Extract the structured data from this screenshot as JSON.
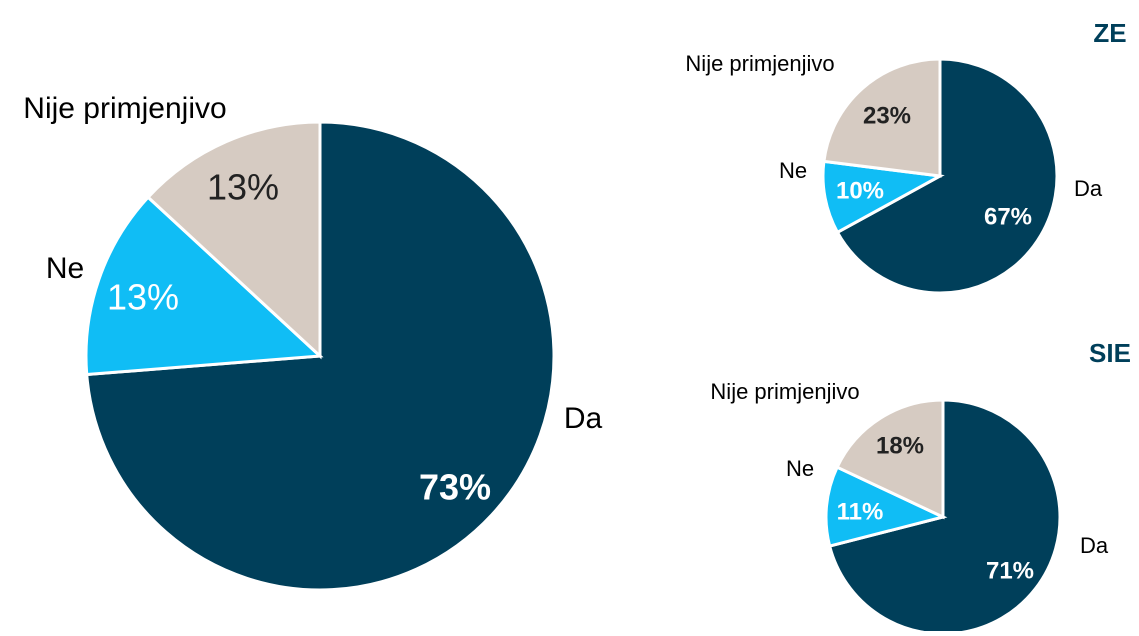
{
  "chart_data": [
    {
      "type": "pie",
      "categories": [
        "Da",
        "Ne",
        "Nije primjenjivo"
      ],
      "values": [
        73,
        13,
        13
      ],
      "value_labels": [
        "73%",
        "13%",
        "13%"
      ],
      "colors": [
        "#003f5a",
        "#10bdf5",
        "#d6cbc2"
      ]
    },
    {
      "type": "pie",
      "title": "ZE",
      "categories": [
        "Da",
        "Ne",
        "Nije primjenjivo"
      ],
      "values": [
        67,
        10,
        23
      ],
      "value_labels": [
        "67%",
        "10%",
        "23%"
      ],
      "colors": [
        "#003f5a",
        "#10bdf5",
        "#d6cbc2"
      ]
    },
    {
      "type": "pie",
      "title": "SIE",
      "categories": [
        "Da",
        "Ne",
        "Nije primjenjivo"
      ],
      "values": [
        71,
        11,
        18
      ],
      "value_labels": [
        "71%",
        "11%",
        "18%"
      ],
      "colors": [
        "#003f5a",
        "#10bdf5",
        "#d6cbc2"
      ]
    }
  ]
}
